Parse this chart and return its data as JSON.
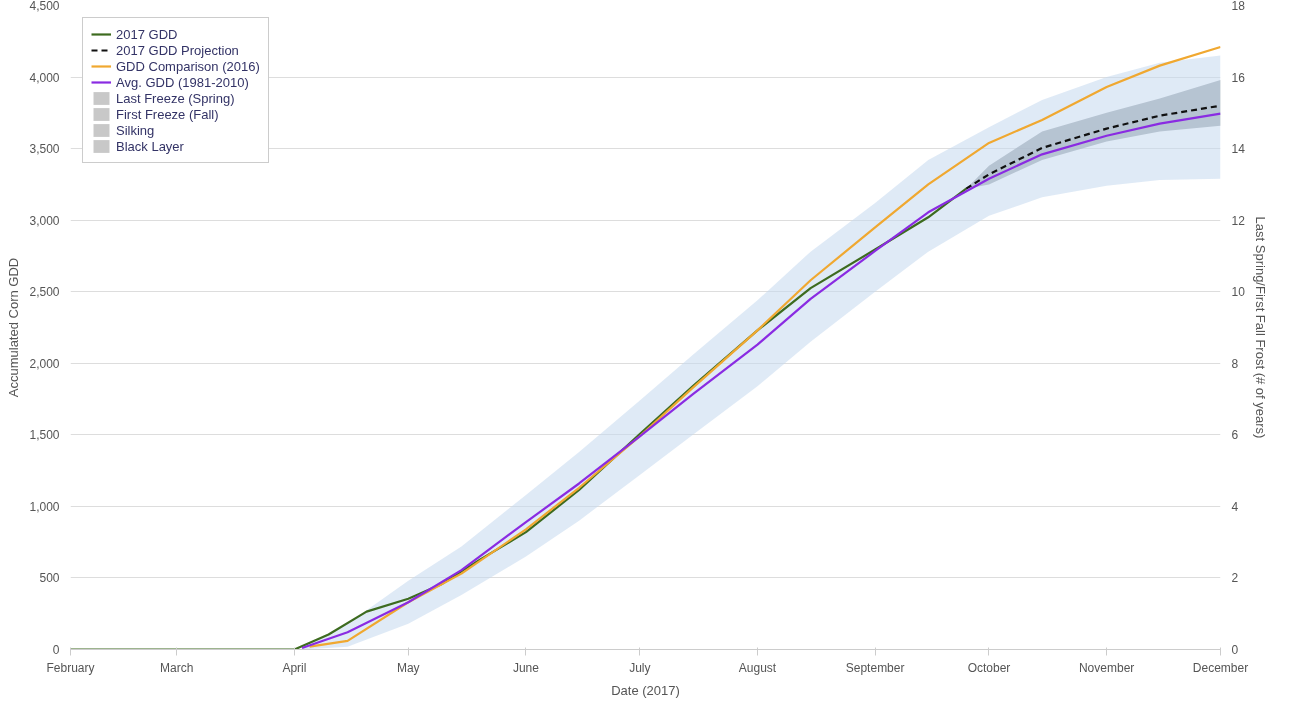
{
  "chart_data": {
    "type": "line",
    "xlabel": "Date (2017)",
    "ylabel": "Accumulated Corn GDD",
    "y2label": "Last Spring/First Fall Frost (# of years)",
    "xlim": [
      "2017-02-01",
      "2017-12-01"
    ],
    "xticks": [
      {
        "value": "2017-02-01",
        "label": "February"
      },
      {
        "value": "2017-03-01",
        "label": "March"
      },
      {
        "value": "2017-04-01",
        "label": "April"
      },
      {
        "value": "2017-05-01",
        "label": "May"
      },
      {
        "value": "2017-06-01",
        "label": "June"
      },
      {
        "value": "2017-07-01",
        "label": "July"
      },
      {
        "value": "2017-08-01",
        "label": "August"
      },
      {
        "value": "2017-09-01",
        "label": "September"
      },
      {
        "value": "2017-10-01",
        "label": "October"
      },
      {
        "value": "2017-11-01",
        "label": "November"
      },
      {
        "value": "2017-12-01",
        "label": "December"
      }
    ],
    "ylim": [
      0,
      4500
    ],
    "yticks": [
      {
        "value": 0,
        "label": "0"
      },
      {
        "value": 500,
        "label": "500"
      },
      {
        "value": 1000,
        "label": "1,000"
      },
      {
        "value": 1500,
        "label": "1,500"
      },
      {
        "value": 2000,
        "label": "2,000"
      },
      {
        "value": 2500,
        "label": "2,500"
      },
      {
        "value": 3000,
        "label": "3,000"
      },
      {
        "value": 3500,
        "label": "3,500"
      },
      {
        "value": 4000,
        "label": "4,000"
      },
      {
        "value": 4500,
        "label": "4,500"
      }
    ],
    "y2lim": [
      0,
      18
    ],
    "y2ticks": [
      0,
      2,
      4,
      6,
      8,
      10,
      12,
      14,
      16,
      18
    ],
    "grid": "y",
    "legend": "top left",
    "series": [
      {
        "name": "2017 GDD",
        "color": "#3d6b1f",
        "x": [
          "2017-02-01",
          "2017-03-01",
          "2017-04-01",
          "2017-04-10",
          "2017-04-20",
          "2017-05-01",
          "2017-05-10",
          "2017-05-20",
          "2017-06-01",
          "2017-06-15",
          "2017-07-01",
          "2017-07-15",
          "2017-08-01",
          "2017-08-15",
          "2017-09-01",
          "2017-09-15",
          "2017-09-25"
        ],
        "values": [
          0,
          0,
          0,
          105,
          265,
          355,
          460,
          630,
          820,
          1115,
          1505,
          1840,
          2230,
          2525,
          2795,
          3020,
          3220
        ]
      },
      {
        "name": "2017 GDD Projection",
        "color": "#111111",
        "line_style": "dashed",
        "x": [
          "2017-09-25",
          "2017-10-01",
          "2017-10-15",
          "2017-11-01",
          "2017-11-15",
          "2017-12-01"
        ],
        "values": [
          3220,
          3320,
          3505,
          3640,
          3730,
          3800
        ],
        "lower": [
          3220,
          3250,
          3420,
          3550,
          3620,
          3660
        ],
        "upper": [
          3220,
          3380,
          3620,
          3750,
          3850,
          3980
        ]
      },
      {
        "name": "GDD Comparison (2016)",
        "color": "#f0a830",
        "x": [
          "2017-04-05",
          "2017-04-15",
          "2017-05-01",
          "2017-05-15",
          "2017-06-01",
          "2017-06-15",
          "2017-07-01",
          "2017-07-15",
          "2017-08-01",
          "2017-08-15",
          "2017-09-01",
          "2017-09-15",
          "2017-10-01",
          "2017-10-15",
          "2017-11-01",
          "2017-11-15",
          "2017-12-01"
        ],
        "values": [
          20,
          60,
          330,
          530,
          840,
          1130,
          1490,
          1830,
          2230,
          2580,
          2950,
          3250,
          3540,
          3700,
          3930,
          4080,
          4210
        ]
      },
      {
        "name": "Avg. GDD (1981-2010)",
        "color": "#8a2be2",
        "x": [
          "2017-04-03",
          "2017-04-15",
          "2017-05-01",
          "2017-05-15",
          "2017-06-01",
          "2017-06-15",
          "2017-07-01",
          "2017-07-15",
          "2017-08-01",
          "2017-08-15",
          "2017-09-01",
          "2017-09-15",
          "2017-10-01",
          "2017-10-15",
          "2017-11-01",
          "2017-11-15",
          "2017-12-01"
        ],
        "values": [
          10,
          120,
          330,
          555,
          890,
          1160,
          1490,
          1785,
          2130,
          2450,
          2785,
          3055,
          3290,
          3460,
          3590,
          3675,
          3745
        ],
        "lower": [
          0,
          20,
          180,
          380,
          650,
          900,
          1220,
          1500,
          1840,
          2150,
          2500,
          2780,
          3030,
          3160,
          3240,
          3280,
          3290
        ],
        "upper": [
          20,
          180,
          480,
          720,
          1080,
          1380,
          1740,
          2060,
          2440,
          2780,
          3120,
          3420,
          3650,
          3840,
          4000,
          4100,
          4150
        ]
      },
      {
        "name": "Last Freeze (Spring)",
        "type": "bar",
        "color": "#c8c8c8"
      },
      {
        "name": "First Freeze (Fall)",
        "type": "bar",
        "color": "#c8c8c8"
      },
      {
        "name": "Silking",
        "type": "bar",
        "color": "#c8c8c8"
      },
      {
        "name": "Black Layer",
        "type": "bar",
        "color": "#c8c8c8"
      }
    ]
  }
}
